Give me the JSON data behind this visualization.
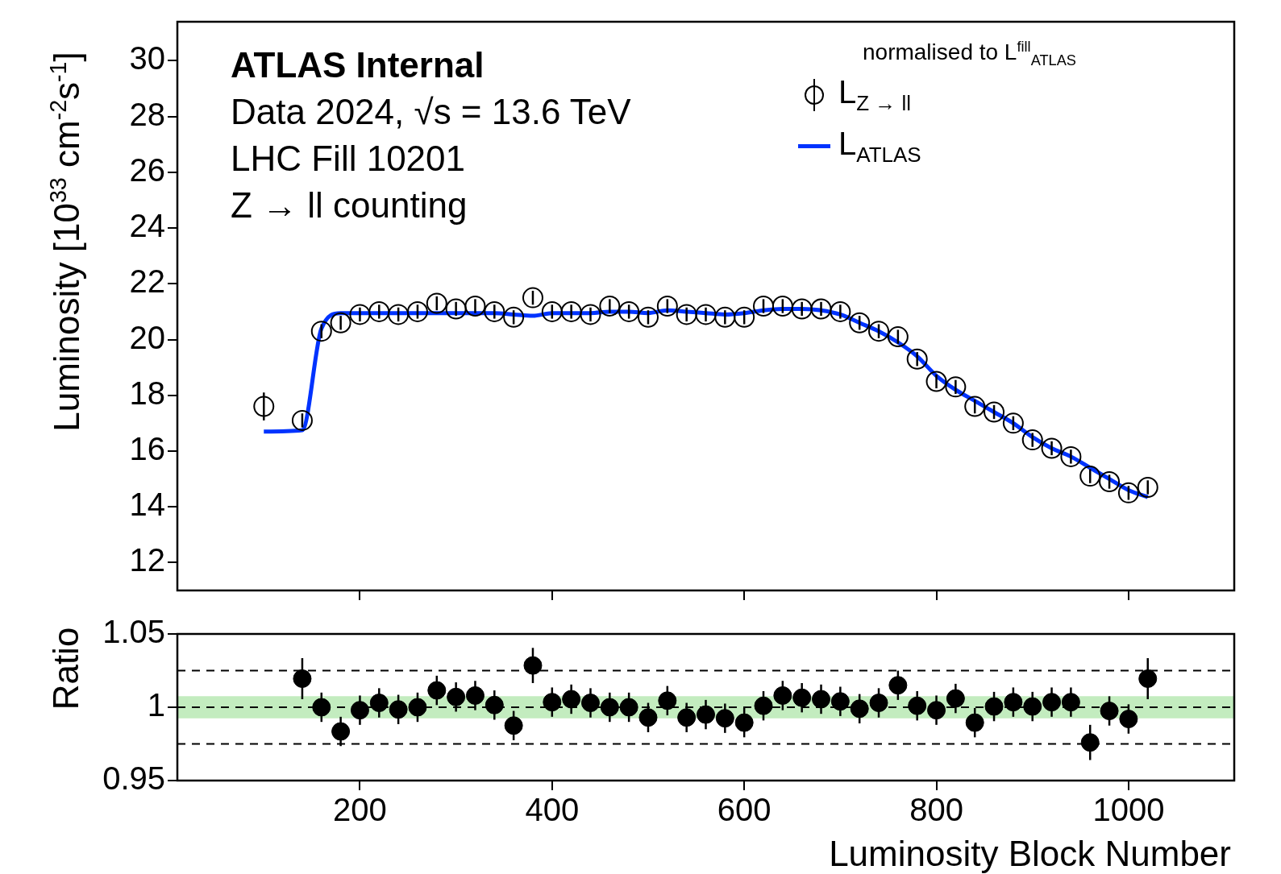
{
  "chart_data": [
    {
      "type": "scatter",
      "ylabel": "Luminosity [10$^{33}$ cm$^{-2}$s$^{-1}$]",
      "legend_title": "normalised to L$^{fill}$$_{ATLAS}$",
      "legend": "top right",
      "marker": "circle",
      "grid": false,
      "tick_labels": "y",
      "annotations": [
        "ATLAS Internal",
        "Data 2024, √s = 13.6 TeV",
        "LHC Fill 10201",
        "Z → ll counting"
      ],
      "xlim": [
        10,
        1110
      ],
      "xticks": [
        200,
        400,
        600,
        800,
        1000
      ],
      "ylim": [
        11,
        31.4
      ],
      "yticks": [
        12,
        14,
        16,
        18,
        20,
        22,
        24,
        26,
        28,
        30
      ],
      "x": [
        100,
        140,
        160,
        180,
        200,
        220,
        240,
        260,
        280,
        300,
        320,
        340,
        360,
        380,
        400,
        420,
        440,
        460,
        480,
        500,
        520,
        540,
        560,
        580,
        600,
        620,
        640,
        660,
        680,
        700,
        720,
        740,
        760,
        780,
        800,
        820,
        840,
        860,
        880,
        900,
        920,
        940,
        960,
        980,
        1000,
        1020
      ],
      "series": [
        {
          "name": "L$_{Z → ll}$",
          "color": "#000000",
          "values": [
            17.6,
            17.1,
            20.3,
            20.6,
            20.9,
            21.0,
            20.9,
            21.0,
            21.3,
            21.1,
            21.2,
            21.0,
            20.8,
            21.5,
            21.0,
            21.0,
            20.9,
            21.2,
            21.0,
            20.8,
            21.2,
            20.9,
            20.9,
            20.8,
            20.8,
            21.2,
            21.2,
            21.1,
            21.1,
            21.0,
            20.6,
            20.3,
            20.1,
            19.3,
            18.5,
            18.3,
            17.6,
            17.4,
            17.0,
            16.4,
            16.1,
            15.8,
            15.1,
            14.9,
            14.5,
            14.7
          ],
          "errors": [
            0.5,
            0.25,
            0.25,
            0.25,
            0.25,
            0.25,
            0.25,
            0.25,
            0.25,
            0.25,
            0.25,
            0.25,
            0.25,
            0.25,
            0.25,
            0.25,
            0.25,
            0.25,
            0.25,
            0.25,
            0.25,
            0.25,
            0.25,
            0.25,
            0.25,
            0.25,
            0.25,
            0.25,
            0.25,
            0.25,
            0.25,
            0.25,
            0.25,
            0.25,
            0.25,
            0.25,
            0.25,
            0.25,
            0.25,
            0.25,
            0.25,
            0.25,
            0.25,
            0.25,
            0.25,
            0.25
          ]
        },
        {
          "name": "L$_{ATLAS}$",
          "type": "line",
          "marker": "none",
          "color": "#0033ff",
          "values": [
            16.7,
            16.75,
            20.4,
            20.95,
            20.95,
            20.95,
            20.95,
            20.95,
            20.95,
            20.95,
            20.95,
            20.95,
            20.9,
            20.85,
            20.95,
            20.95,
            20.95,
            21.0,
            21.0,
            20.95,
            21.05,
            21.0,
            20.95,
            20.9,
            20.95,
            21.05,
            21.1,
            21.1,
            21.05,
            20.9,
            20.6,
            20.3,
            19.9,
            19.4,
            18.7,
            18.2,
            17.8,
            17.4,
            17.0,
            16.5,
            16.1,
            15.8,
            15.4,
            15.0,
            14.6,
            14.35
          ]
        }
      ]
    },
    {
      "type": "scatter",
      "xlabel": "Luminosity Block Number",
      "ylabel": "Ratio",
      "marker": "circle",
      "grid": false,
      "xlim": [
        10,
        1110
      ],
      "xticks": [
        200,
        400,
        600,
        800,
        1000
      ],
      "ylim": [
        0.95,
        1.05
      ],
      "yticks": [
        0.95,
        1,
        1.05
      ],
      "bands": [
        {
          "axis": "y",
          "from": 0.9925,
          "to": 1.0075,
          "color": "#c3ecbf"
        }
      ],
      "ref_lines": [
        {
          "axis": "y",
          "value": 0.975,
          "line_style": "dashed",
          "color": "#000000"
        },
        {
          "axis": "y",
          "value": 1,
          "line_style": "dashed",
          "color": "#000000"
        },
        {
          "axis": "y",
          "value": 1.025,
          "line_style": "dashed",
          "color": "#000000"
        }
      ],
      "series": [
        {
          "color": "#000000",
          "x": [
            140,
            160,
            180,
            200,
            220,
            240,
            260,
            280,
            300,
            320,
            340,
            360,
            380,
            400,
            420,
            440,
            460,
            480,
            500,
            520,
            540,
            560,
            580,
            600,
            620,
            640,
            660,
            680,
            700,
            720,
            740,
            760,
            780,
            800,
            820,
            840,
            860,
            880,
            900,
            920,
            940,
            960,
            980,
            1000,
            1020
          ],
          "values": [
            1.0195,
            1.0,
            0.9835,
            0.998,
            1.003,
            0.9985,
            1.0,
            1.0115,
            1.007,
            1.008,
            1.0015,
            0.9875,
            1.0285,
            1.0035,
            1.0055,
            1.003,
            1.0,
            1.0,
            0.993,
            1.0045,
            0.993,
            0.995,
            0.9925,
            0.9895,
            1.001,
            1.008,
            1.0065,
            1.0055,
            1.004,
            0.999,
            1.003,
            1.015,
            1.001,
            0.998,
            1.006,
            0.9895,
            1.0005,
            1.0035,
            1.0005,
            1.0035,
            1.0035,
            0.976,
            0.9975,
            0.992,
            1.0195
          ],
          "errors": [
            0.014,
            0.01,
            0.01,
            0.01,
            0.01,
            0.01,
            0.01,
            0.01,
            0.01,
            0.01,
            0.01,
            0.01,
            0.012,
            0.01,
            0.01,
            0.01,
            0.01,
            0.01,
            0.01,
            0.01,
            0.01,
            0.01,
            0.01,
            0.01,
            0.01,
            0.01,
            0.01,
            0.01,
            0.01,
            0.01,
            0.01,
            0.01,
            0.01,
            0.01,
            0.01,
            0.01,
            0.01,
            0.01,
            0.01,
            0.01,
            0.01,
            0.012,
            0.01,
            0.01,
            0.014
          ]
        }
      ]
    }
  ]
}
